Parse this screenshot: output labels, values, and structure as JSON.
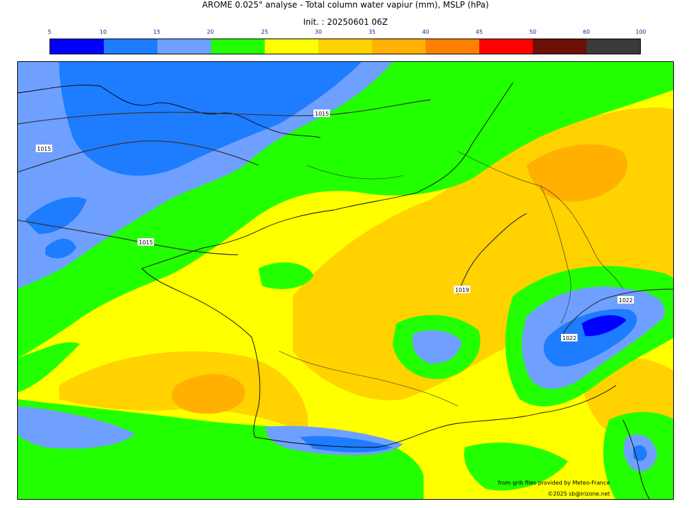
{
  "title": "AROME 0.025° analyse - Total column water vapiur (mm), MSLP (hPa)",
  "init": "Init. : 20250601 06Z",
  "colorbar": {
    "ticks": [
      "5",
      "10",
      "15",
      "20",
      "25",
      "30",
      "35",
      "40",
      "45",
      "50",
      "60",
      "100"
    ],
    "colors": [
      "#0000ff",
      "#1e7cff",
      "#6fa0ff",
      "#22ff00",
      "#ffff00",
      "#ffd200",
      "#ffb000",
      "#ff8000",
      "#ff0000",
      "#6b1006",
      "#3a3a3a"
    ]
  },
  "isobars": [
    "1015",
    "1015",
    "1015",
    "1019",
    "1022",
    "1022"
  ],
  "credits": {
    "source": "from grib files provided by Meteo-France",
    "copyright": "©2025 sb@irizone.net"
  }
}
